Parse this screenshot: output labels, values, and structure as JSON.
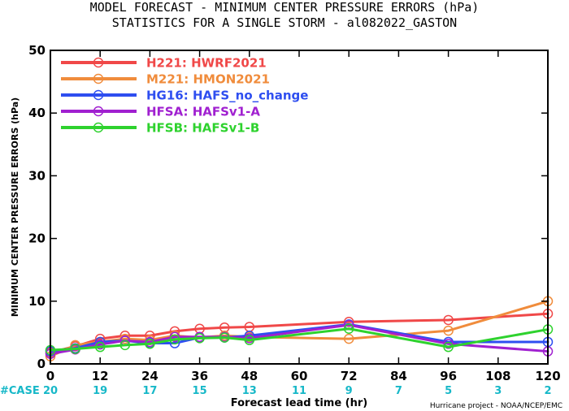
{
  "header": {
    "title_line1": "MODEL FORECAST - MINIMUM CENTER PRESSURE ERRORS (hPa)",
    "title_line2": "STATISTICS FOR A SINGLE STORM - al082022_GASTON"
  },
  "footnote": "Hurricane project - NOAA/NCEP/EMC",
  "chart_data": {
    "type": "line",
    "title": "MODEL FORECAST - MINIMUM CENTER PRESSURE ERRORS (hPa)",
    "subtitle": "STATISTICS FOR A SINGLE STORM - al082022_GASTON",
    "xlabel": "Forecast lead time (hr)",
    "ylabel": "MINIMUM CENTER PRESSURE ERRORS (hPa)",
    "xlim": [
      0,
      120
    ],
    "ylim": [
      0,
      50
    ],
    "xticks": [
      0,
      12,
      24,
      36,
      48,
      60,
      72,
      84,
      96,
      108,
      120
    ],
    "yticks": [
      0,
      10,
      20,
      30,
      40,
      50
    ],
    "grid": false,
    "legend_position": "top-left",
    "case_label": "#CASE",
    "case_counts": [
      {
        "x": 0,
        "n": "20"
      },
      {
        "x": 12,
        "n": "19"
      },
      {
        "x": 24,
        "n": "17"
      },
      {
        "x": 36,
        "n": "15"
      },
      {
        "x": 48,
        "n": "13"
      },
      {
        "x": 60,
        "n": "11"
      },
      {
        "x": 72,
        "n": "9"
      },
      {
        "x": 84,
        "n": "7"
      },
      {
        "x": 96,
        "n": "5"
      },
      {
        "x": 108,
        "n": "3"
      },
      {
        "x": 120,
        "n": "2"
      }
    ],
    "series": [
      {
        "name": "H221: HWRF2021",
        "color": "#f04848",
        "x": [
          0,
          6,
          12,
          18,
          24,
          30,
          36,
          42,
          48,
          72,
          96,
          120
        ],
        "y": [
          1.8,
          2.8,
          4.0,
          4.5,
          4.5,
          5.2,
          5.6,
          5.8,
          5.9,
          6.7,
          7.0,
          8.0
        ]
      },
      {
        "name": "M221: HMON2021",
        "color": "#f08c3c",
        "x": [
          0,
          6,
          12,
          18,
          24,
          30,
          36,
          42,
          48,
          72,
          96,
          120
        ],
        "y": [
          1.2,
          3.0,
          3.5,
          4.0,
          3.8,
          4.5,
          4.2,
          4.5,
          4.3,
          4.0,
          5.3,
          10.0
        ]
      },
      {
        "name": "HG16: HAFS_no_change",
        "color": "#2e4ef0",
        "x": [
          0,
          6,
          12,
          18,
          24,
          30,
          36,
          42,
          48,
          72,
          96,
          120
        ],
        "y": [
          2.0,
          2.5,
          3.5,
          3.7,
          3.3,
          3.3,
          4.2,
          4.2,
          4.5,
          6.3,
          3.5,
          3.5
        ]
      },
      {
        "name": "HFSA: HAFSv1-A",
        "color": "#a020d0",
        "x": [
          0,
          6,
          12,
          18,
          24,
          30,
          36,
          42,
          48,
          72,
          96,
          120
        ],
        "y": [
          1.6,
          2.3,
          3.1,
          3.7,
          3.5,
          4.3,
          4.3,
          4.3,
          4.1,
          6.2,
          3.2,
          2.0
        ]
      },
      {
        "name": "HFSB: HAFSv1-B",
        "color": "#2ed22e",
        "x": [
          0,
          6,
          12,
          18,
          24,
          30,
          36,
          42,
          48,
          72,
          96,
          120
        ],
        "y": [
          2.2,
          2.4,
          2.7,
          3.0,
          3.2,
          3.9,
          4.1,
          4.2,
          3.8,
          5.6,
          2.7,
          5.5
        ]
      }
    ]
  }
}
